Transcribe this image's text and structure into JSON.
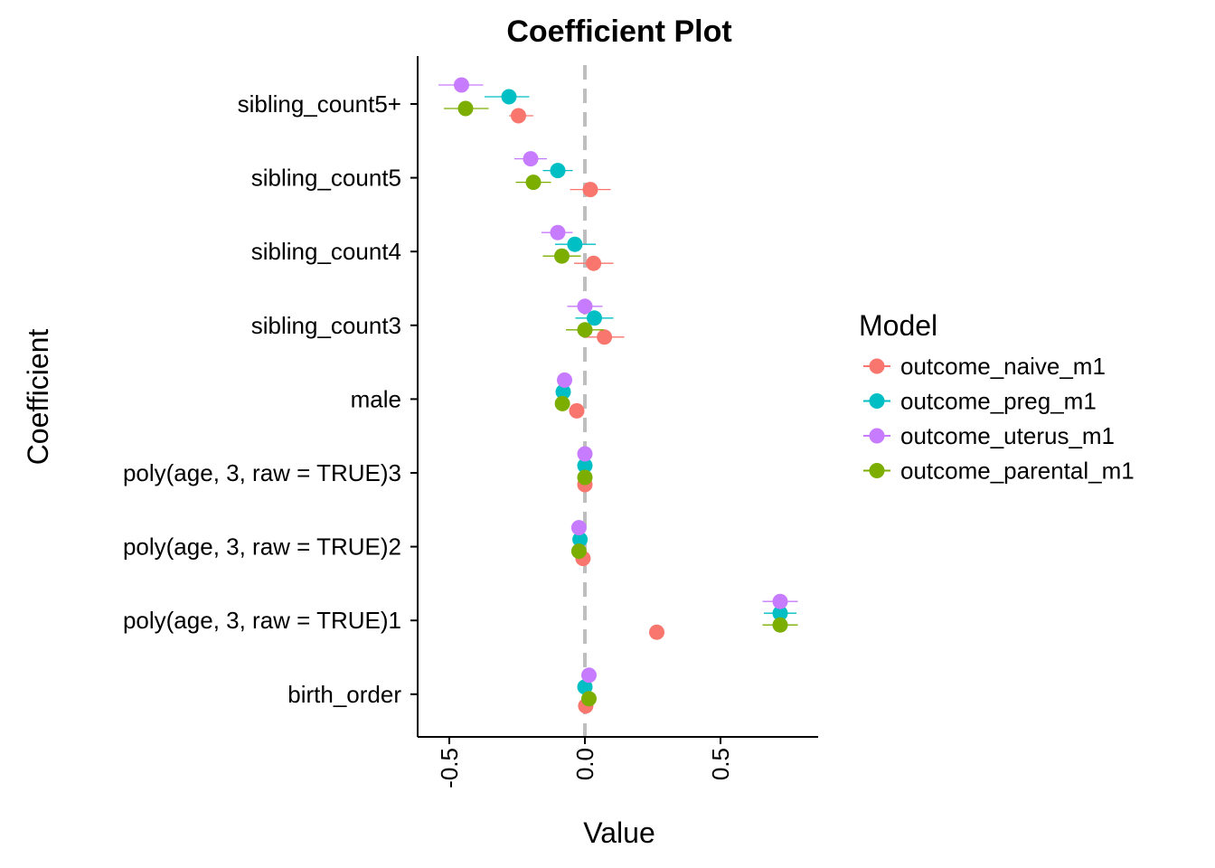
{
  "chart_data": {
    "type": "scatter",
    "title": "Coefficient Plot",
    "xlabel": "Value",
    "ylabel": "Coefficient",
    "xlim": [
      -0.62,
      0.86
    ],
    "xticks": [
      -0.5,
      0.0,
      0.5
    ],
    "xtick_labels": [
      "-0.5",
      "0.0",
      "0.5"
    ],
    "reference_line": {
      "x": 0,
      "style": "dashed",
      "color": "#BEBEBE"
    },
    "categories": [
      "sibling_count5+",
      "sibling_count5",
      "sibling_count4",
      "sibling_count3",
      "male",
      "poly(age, 3, raw = TRUE)3",
      "poly(age, 3, raw = TRUE)2",
      "poly(age, 3, raw = TRUE)1",
      "birth_order"
    ],
    "legend": {
      "title": "Model",
      "placement": "right"
    },
    "series": [
      {
        "name": "outcome_naive_m1",
        "color": "#F8766D",
        "values": [
          -0.245,
          0.02,
          0.032,
          0.072,
          -0.03,
          0.0,
          -0.007,
          0.265,
          0.003
        ],
        "ci_low": [
          -0.28,
          -0.055,
          -0.04,
          0.0,
          -0.04,
          -0.004,
          -0.012,
          0.245,
          -0.003
        ],
        "ci_high": [
          -0.19,
          0.095,
          0.105,
          0.145,
          -0.02,
          0.004,
          -0.002,
          0.285,
          0.009
        ]
      },
      {
        "name": "outcome_preg_m1",
        "color": "#00BFC4",
        "values": [
          -0.28,
          -0.1,
          -0.037,
          0.035,
          -0.08,
          0.0,
          -0.018,
          0.72,
          0.0
        ],
        "ci_low": [
          -0.37,
          -0.155,
          -0.11,
          -0.035,
          -0.09,
          -0.004,
          -0.024,
          0.66,
          -0.006
        ],
        "ci_high": [
          -0.205,
          -0.045,
          0.04,
          0.105,
          -0.07,
          0.004,
          -0.012,
          0.78,
          0.006
        ]
      },
      {
        "name": "outcome_uterus_m1",
        "color": "#C77CFF",
        "values": [
          -0.455,
          -0.2,
          -0.1,
          0.0,
          -0.075,
          0.0,
          -0.022,
          0.72,
          0.015
        ],
        "ci_low": [
          -0.54,
          -0.26,
          -0.16,
          -0.065,
          -0.085,
          -0.004,
          -0.028,
          0.655,
          0.009
        ],
        "ci_high": [
          -0.375,
          -0.14,
          -0.045,
          0.065,
          -0.065,
          0.004,
          -0.016,
          0.785,
          0.021
        ]
      },
      {
        "name": "outcome_parental_m1",
        "color": "#7CAE00",
        "values": [
          -0.44,
          -0.19,
          -0.085,
          0.0,
          -0.083,
          0.0,
          -0.022,
          0.72,
          0.015
        ],
        "ci_low": [
          -0.52,
          -0.255,
          -0.155,
          -0.07,
          -0.093,
          -0.004,
          -0.028,
          0.655,
          0.009
        ],
        "ci_high": [
          -0.355,
          -0.125,
          -0.015,
          0.07,
          -0.073,
          0.004,
          -0.016,
          0.785,
          0.021
        ]
      }
    ]
  }
}
